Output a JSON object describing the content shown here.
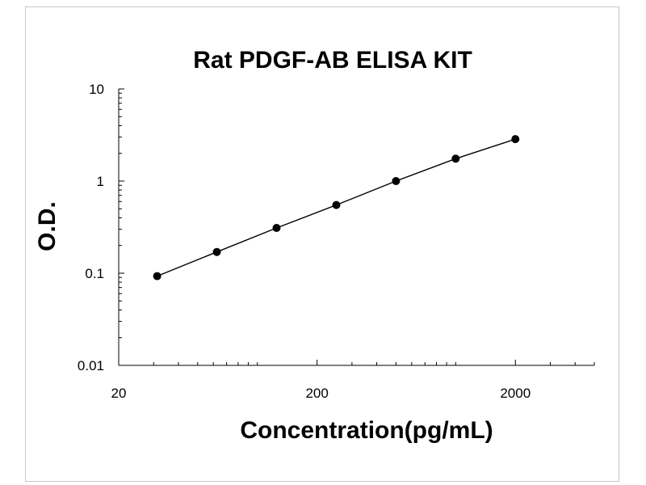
{
  "chart_data": {
    "type": "line",
    "title": "Rat PDGF-AB ELISA KIT",
    "xlabel": "Concentration(pg/mL)",
    "ylabel": "O.D.",
    "x_scale": "log",
    "y_scale": "log",
    "xlim": [
      20,
      5000
    ],
    "ylim": [
      0.01,
      10
    ],
    "x_ticks": [
      20,
      200,
      2000
    ],
    "x_tick_labels": [
      "20",
      "200",
      "2000"
    ],
    "y_ticks": [
      0.01,
      0.1,
      1,
      10
    ],
    "y_tick_labels": [
      "0.01",
      "0.1",
      "1",
      "10"
    ],
    "grid": false,
    "legend": "none",
    "series": [
      {
        "x": [
          31.25,
          62.5,
          125,
          250,
          500,
          1000,
          2000
        ],
        "y": [
          0.093,
          0.17,
          0.31,
          0.55,
          1.0,
          1.75,
          2.85
        ],
        "color": "#000000",
        "marker": "circle"
      }
    ]
  }
}
